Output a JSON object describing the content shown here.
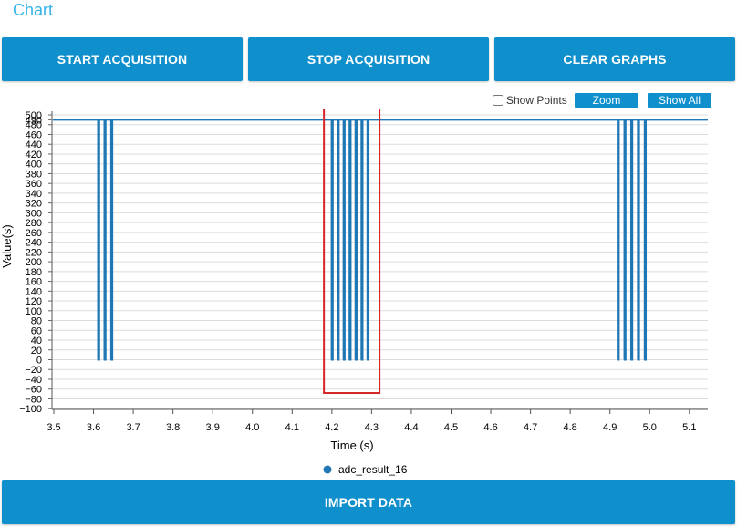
{
  "panel": {
    "title": "Chart"
  },
  "buttons": {
    "start": "START ACQUISITION",
    "stop": "STOP ACQUISITION",
    "clear": "CLEAR GRAPHS",
    "import": "IMPORT DATA"
  },
  "toolbar": {
    "show_points_label": "Show Points",
    "show_points_checked": false,
    "zoom_label": "Zoom",
    "show_all_label": "Show All"
  },
  "colors": {
    "accent": "#0f8fcb",
    "title": "#33b3e6",
    "series": "#1f77b4",
    "highlight": "#d62728"
  },
  "chart_data": {
    "type": "line",
    "xlabel": "Time (s)",
    "ylabel": "Value(s)",
    "xlim": [
      3.5,
      5.14
    ],
    "ylim": [
      -100,
      500
    ],
    "x_ticks": [
      "3.5",
      "3.6",
      "3.7",
      "3.8",
      "3.9",
      "4.0",
      "4.1",
      "4.2",
      "4.3",
      "4.4",
      "4.5",
      "4.6",
      "4.7",
      "4.8",
      "4.9",
      "5.0",
      "5.1"
    ],
    "y_ticks": [
      500,
      490,
      480,
      460,
      440,
      420,
      400,
      380,
      360,
      340,
      320,
      300,
      280,
      260,
      240,
      220,
      200,
      180,
      160,
      140,
      120,
      100,
      80,
      60,
      40,
      20,
      0,
      -20,
      -40,
      -60,
      -80,
      -100
    ],
    "grid": true,
    "legend_position": "bottom-center",
    "baseline": 490,
    "series": [
      {
        "name": "adc_result_16",
        "baseline_value": 490,
        "drop_value": 0,
        "drops_x": [
          3.612,
          3.628,
          3.645,
          4.2,
          4.215,
          4.23,
          4.245,
          4.26,
          4.275,
          4.29,
          4.92,
          4.937,
          4.954,
          4.971,
          4.988
        ]
      }
    ],
    "highlight_box": {
      "x_range": [
        4.18,
        4.32
      ],
      "y_range": [
        -68,
        516
      ]
    }
  }
}
